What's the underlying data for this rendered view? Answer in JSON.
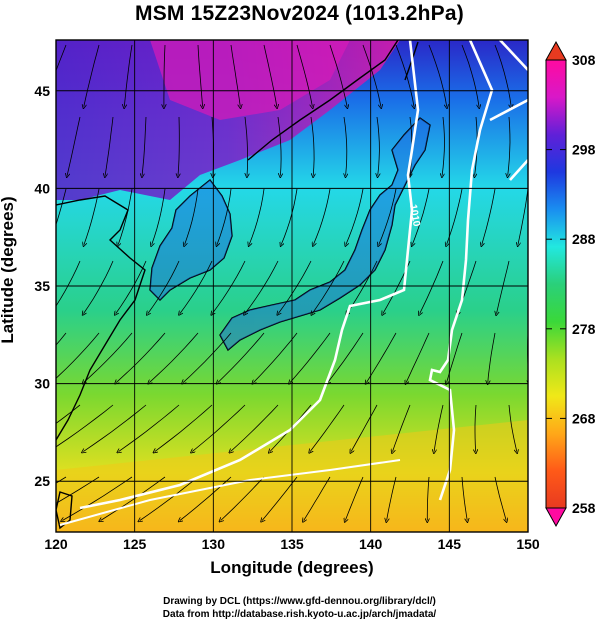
{
  "title": "MSM 15Z23Nov2024 (1013.2hPa)",
  "map": {
    "xlabel": "Longitude (degrees)",
    "ylabel": "Latitude  (degrees)",
    "lon_range": [
      120,
      150
    ],
    "lat_range": [
      22.4,
      47.6
    ],
    "lon_ticks": [
      "120",
      "125",
      "130",
      "135",
      "140",
      "145",
      "150"
    ],
    "lat_ticks": [
      "25",
      "30",
      "35",
      "40",
      "45"
    ],
    "contour_label": "1010",
    "colors": {
      "land_outline": "#000000",
      "isobar": "#ffffff",
      "streamline": "#000000"
    }
  },
  "colorbar": {
    "min": 258,
    "max": 308,
    "tick_labels": [
      "308",
      "298",
      "288",
      "278",
      "268",
      "258"
    ],
    "stops": [
      "#ff0aa0",
      "#d818c8",
      "#6020d8",
      "#1e38e0",
      "#1a8ef0",
      "#22e8e0",
      "#2ad07a",
      "#3ad83a",
      "#aae020",
      "#f0e818",
      "#ffa818",
      "#ff5a18",
      "#e83a20"
    ]
  },
  "credits": {
    "line1": "Drawing by DCL (https://www.gfd-dennou.org/library/dcl/)",
    "line2": "Data from http://database.rish.kyoto-u.ac.jp/arch/jmadata/"
  }
}
